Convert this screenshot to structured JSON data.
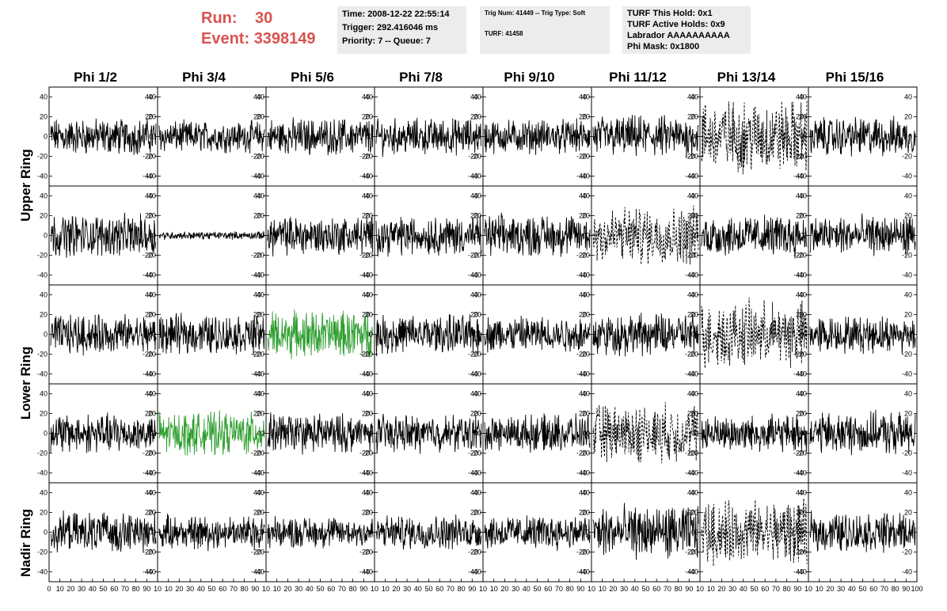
{
  "header": {
    "run_label": "Run:",
    "run_value": "30",
    "event_label": "Event:",
    "event_value": "3398149"
  },
  "info_box_1": {
    "line1": "Time: 2008-12-22 22:55:14",
    "line2": "Trigger: 292.416046 ms",
    "line3": "Priority: 7 -- Queue: 7"
  },
  "info_box_2": {
    "line1": "Trig Num: 41449 -- Trig Type: Soft",
    "line2": "TURF: 41458"
  },
  "info_box_3": {
    "line1": "TURF This Hold: 0x1",
    "line2": "TURF Active Holds: 0x9",
    "line3": "Labrador AAAAAAAAAA",
    "line4": "Phi Mask: 0x1800"
  },
  "colors": {
    "title_red": "#d9534f",
    "box_bg": "#ececec",
    "trace_black": "#000000",
    "trace_green": "#2e9e2e"
  },
  "chart_data": {
    "type": "line",
    "columns": [
      "Phi 1/2",
      "Phi 3/4",
      "Phi 5/6",
      "Phi 7/8",
      "Phi 9/10",
      "Phi 11/12",
      "Phi 13/14",
      "Phi 15/16"
    ],
    "rows": [
      "Upper Ring",
      "Lower Ring",
      "Nadir Ring"
    ],
    "ylim": [
      -50,
      50
    ],
    "yticks": [
      -40,
      -20,
      0,
      20,
      40
    ],
    "xlim": [
      0,
      100
    ],
    "xticks": [
      0,
      10,
      20,
      30,
      40,
      50,
      60,
      70,
      80,
      90,
      100
    ],
    "xtick_labels_bottom": [
      "0",
      "10",
      "20",
      "30",
      "40",
      "50",
      "60",
      "70",
      "80",
      "90",
      "10",
      "10",
      "20",
      "30",
      "40",
      "50",
      "60",
      "70",
      "80",
      "90",
      "10",
      "10",
      "20",
      "30",
      "40",
      "50",
      "60",
      "70",
      "80",
      "90",
      "10",
      "10",
      "20",
      "30",
      "40",
      "50",
      "60",
      "70",
      "80",
      "90",
      "10",
      "10",
      "20",
      "30",
      "40",
      "50",
      "60",
      "70",
      "80",
      "90",
      "10",
      "10",
      "20",
      "30",
      "40",
      "50",
      "60",
      "70",
      "80",
      "90",
      "10",
      "10",
      "20",
      "30",
      "40",
      "50",
      "60",
      "70",
      "80",
      "90",
      "10",
      "10",
      "20",
      "30",
      "40",
      "50",
      "60",
      "70",
      "80",
      "90",
      "100"
    ],
    "panel_rows": 5,
    "grid": false,
    "panel_amplitude": [
      [
        14,
        12,
        14,
        14,
        13,
        16,
        28,
        15
      ],
      [
        16,
        3,
        15,
        15,
        16,
        22,
        16,
        15
      ],
      [
        15,
        15,
        18,
        15,
        14,
        16,
        25,
        14
      ],
      [
        15,
        16,
        15,
        14,
        14,
        22,
        14,
        16
      ],
      [
        15,
        13,
        12,
        13,
        13,
        20,
        24,
        15
      ]
    ],
    "panel_style": [
      [
        "solid",
        "solid",
        "solid",
        "solid",
        "solid",
        "solid",
        "dashed",
        "solid"
      ],
      [
        "solid",
        "solid",
        "solid",
        "solid",
        "solid",
        "dashed",
        "solid",
        "solid"
      ],
      [
        "solid",
        "solid",
        "green",
        "solid",
        "solid",
        "solid",
        "dashed",
        "solid"
      ],
      [
        "solid",
        "green",
        "solid",
        "solid",
        "solid",
        "dashed",
        "solid",
        "solid"
      ],
      [
        "solid",
        "solid",
        "solid",
        "solid",
        "solid",
        "solid",
        "dashed",
        "solid"
      ]
    ]
  }
}
